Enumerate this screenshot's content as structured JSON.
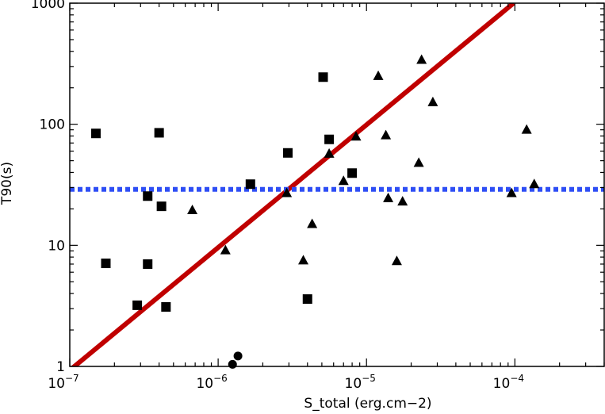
{
  "chart_data": {
    "type": "scatter",
    "title": "",
    "xlabel": "S_total (erg.cm−2)",
    "ylabel": "T90(s)",
    "xscale": "log",
    "yscale": "log",
    "xlim": [
      1e-07,
      0.0004
    ],
    "ylim": [
      1,
      1000
    ],
    "grid": false,
    "legend": "none",
    "x_ticks": [
      {
        "value": 1e-07,
        "base": "10",
        "exp": "−7"
      },
      {
        "value": 1e-06,
        "base": "10",
        "exp": "−6"
      },
      {
        "value": 1e-05,
        "base": "10",
        "exp": "−5"
      },
      {
        "value": 0.0001,
        "base": "10",
        "exp": "−4"
      }
    ],
    "y_ticks": [
      {
        "value": 1,
        "label": "1"
      },
      {
        "value": 10,
        "label": "10"
      },
      {
        "value": 100,
        "label": "100"
      },
      {
        "value": 1000,
        "label": "1000"
      }
    ],
    "series": [
      {
        "marker": "square",
        "color": "#000000",
        "points": [
          {
            "x": 1.5e-07,
            "y": 84
          },
          {
            "x": 1.75e-07,
            "y": 7.1
          },
          {
            "x": 2.85e-07,
            "y": 3.2
          },
          {
            "x": 3.35e-07,
            "y": 25.5
          },
          {
            "x": 3.35e-07,
            "y": 7.0
          },
          {
            "x": 4e-07,
            "y": 85
          },
          {
            "x": 4.15e-07,
            "y": 21
          },
          {
            "x": 4.45e-07,
            "y": 3.1
          },
          {
            "x": 1.65e-06,
            "y": 32
          },
          {
            "x": 2.95e-06,
            "y": 58
          },
          {
            "x": 4e-06,
            "y": 3.6
          },
          {
            "x": 5.1e-06,
            "y": 245
          },
          {
            "x": 5.6e-06,
            "y": 75
          },
          {
            "x": 8e-06,
            "y": 39.5
          }
        ]
      },
      {
        "marker": "triangle",
        "color": "#000000",
        "points": [
          {
            "x": 6.7e-07,
            "y": 19.5
          },
          {
            "x": 1.12e-06,
            "y": 9.1
          },
          {
            "x": 2.9e-06,
            "y": 27
          },
          {
            "x": 3.75e-06,
            "y": 7.5
          },
          {
            "x": 4.3e-06,
            "y": 15
          },
          {
            "x": 5.6e-06,
            "y": 57
          },
          {
            "x": 7e-06,
            "y": 34
          },
          {
            "x": 8.5e-06,
            "y": 79
          },
          {
            "x": 1.2e-05,
            "y": 250
          },
          {
            "x": 1.35e-05,
            "y": 81
          },
          {
            "x": 1.4e-05,
            "y": 24.5
          },
          {
            "x": 1.6e-05,
            "y": 7.4
          },
          {
            "x": 1.75e-05,
            "y": 23
          },
          {
            "x": 2.25e-05,
            "y": 48
          },
          {
            "x": 2.35e-05,
            "y": 340
          },
          {
            "x": 2.8e-05,
            "y": 152
          },
          {
            "x": 9.5e-05,
            "y": 27
          },
          {
            "x": 0.00012,
            "y": 90
          },
          {
            "x": 0.000135,
            "y": 32
          }
        ]
      },
      {
        "marker": "circle",
        "color": "#000000",
        "points": [
          {
            "x": 1.25e-06,
            "y": 1.04
          },
          {
            "x": 1.36e-06,
            "y": 1.22
          }
        ]
      }
    ],
    "lines": [
      {
        "style": "solid",
        "color": "#c00000",
        "x": [
          1e-07,
          9.8e-05
        ],
        "y": [
          0.93,
          1000
        ]
      },
      {
        "style": "dotted",
        "color": "#2e4ef5",
        "x": [
          1e-07,
          0.0004
        ],
        "y": [
          29,
          29
        ]
      }
    ]
  }
}
